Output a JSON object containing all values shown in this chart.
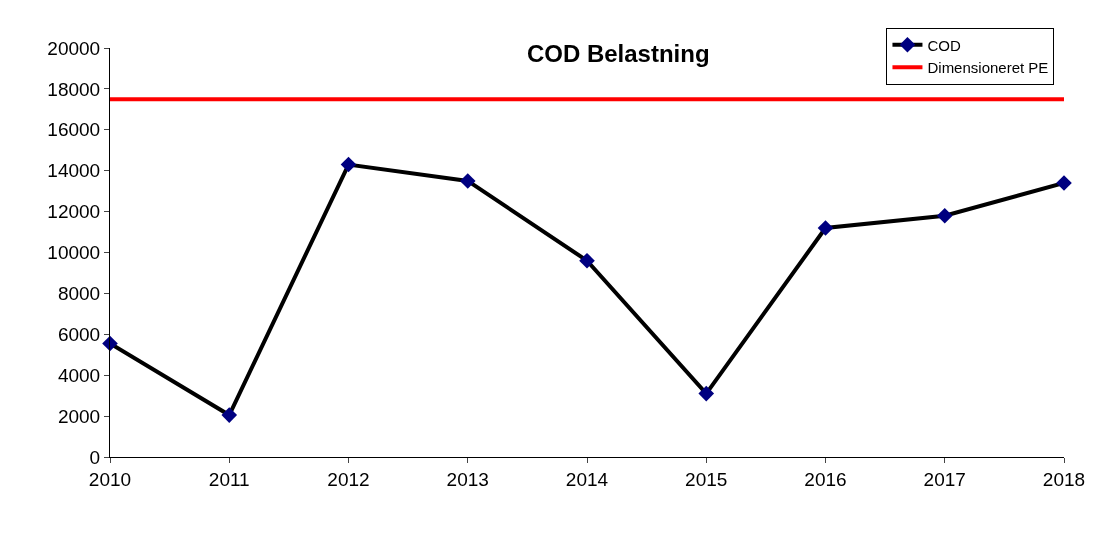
{
  "chart_data": {
    "type": "line",
    "title": "COD Belastning",
    "categories": [
      "2010",
      "2011",
      "2012",
      "2013",
      "2014",
      "2015",
      "2016",
      "2017",
      "2018"
    ],
    "series": [
      {
        "name": "COD",
        "color": "#000000",
        "colors": [
          "#000080",
          "#000080",
          "#000080",
          "#000080",
          "#000080",
          "#000080",
          "#000080",
          "#000080",
          "#000080"
        ],
        "marker": "diamond",
        "values": [
          5550,
          2050,
          14300,
          13500,
          9600,
          3100,
          11200,
          11800,
          13400
        ]
      },
      {
        "name": "Dimensioneret PE",
        "color": "#ff0000",
        "marker": "none",
        "values": [
          17500,
          17500,
          17500,
          17500,
          17500,
          17500,
          17500,
          17500,
          17500
        ]
      }
    ],
    "ylim": [
      0,
      20000
    ],
    "yticks": [
      0,
      2000,
      4000,
      6000,
      8000,
      10000,
      12000,
      14000,
      16000,
      18000,
      20000
    ],
    "legend": "top right",
    "line_style": "solid"
  }
}
